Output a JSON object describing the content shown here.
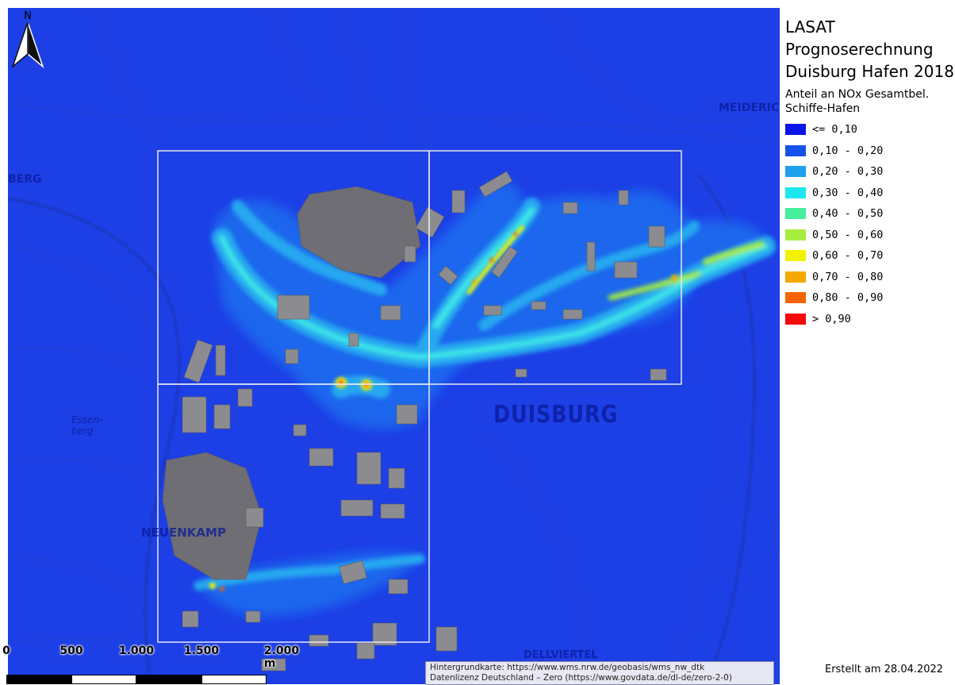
{
  "legend": {
    "title_lines": [
      "LASAT",
      "Prognoserechnung",
      "Duisburg Hafen 2018"
    ],
    "subtitle_lines": [
      "Anteil an NOx Gesamtbel.",
      "Schiffe-Hafen"
    ],
    "items": [
      {
        "label": "<= 0,10",
        "color": "#0a14e6"
      },
      {
        "label": "0,10 - 0,20",
        "color": "#1452ea"
      },
      {
        "label": "0,20 - 0,30",
        "color": "#1ea0ee"
      },
      {
        "label": "0,30 - 0,40",
        "color": "#1ee6ee"
      },
      {
        "label": "0,40 - 0,50",
        "color": "#46ee9e"
      },
      {
        "label": "0,50 - 0,60",
        "color": "#a6ee3e"
      },
      {
        "label": "0,60 - 0,70",
        "color": "#f2f200"
      },
      {
        "label": "0,70 - 0,80",
        "color": "#f5a800"
      },
      {
        "label": "0,80 - 0,90",
        "color": "#f56400"
      },
      {
        "label": "> 0,90",
        "color": "#f50a0a"
      }
    ]
  },
  "map": {
    "north_label": "N",
    "place_labels": {
      "duisburg": "DUISBURG",
      "neuenkamp": "NEUENKAMP",
      "meiderich": "MEIDERICH",
      "essenberg_1": "Essen-",
      "essenberg_2": "berg",
      "berg": "BERG",
      "viertel": "DELLVIERTEL"
    }
  },
  "scalebar": {
    "ticks": [
      "0",
      "500",
      "1.000",
      "1.500",
      "2.000 m"
    ]
  },
  "attribution": {
    "line1": "Hintergrundkarte: https://www.wms.nrw.de/geobasis/wms_nw_dtk",
    "line2": "Datenlizenz Deutschland – Zero (https://www.govdata.de/dl-de/zero-2-0)"
  },
  "footer": {
    "created": "Erstellt am 28.04.2022"
  }
}
